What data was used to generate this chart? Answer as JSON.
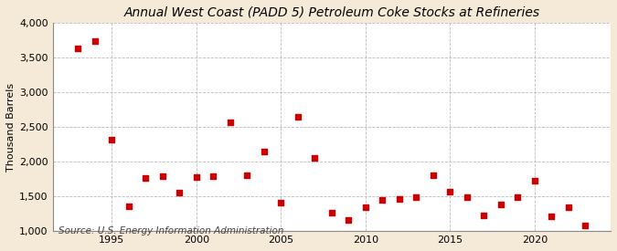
{
  "title": "Annual West Coast (PADD 5) Petroleum Coke Stocks at Refineries",
  "ylabel": "Thousand Barrels",
  "source": "Source: U.S. Energy Information Administration",
  "figure_bg_color": "#f5ead8",
  "plot_bg_color": "#ffffff",
  "marker_color": "#cc0000",
  "marker": "s",
  "marker_size": 16,
  "ylim": [
    1000,
    4000
  ],
  "yticks": [
    1000,
    1500,
    2000,
    2500,
    3000,
    3500,
    4000
  ],
  "years": [
    1993,
    1994,
    1995,
    1996,
    1997,
    1998,
    1999,
    2000,
    2001,
    2002,
    2003,
    2004,
    2005,
    2006,
    2007,
    2008,
    2009,
    2010,
    2011,
    2012,
    2013,
    2014,
    2015,
    2016,
    2017,
    2018,
    2019,
    2020,
    2021,
    2022,
    2023
  ],
  "values": [
    3630,
    3730,
    2320,
    1360,
    1760,
    1790,
    1560,
    1780,
    1790,
    2560,
    1810,
    2150,
    1410,
    2650,
    2060,
    1270,
    1160,
    1350,
    1450,
    1460,
    1490,
    1810,
    1570,
    1490,
    1220,
    1380,
    1490,
    1720,
    1210,
    1350,
    1080
  ],
  "xticks": [
    1995,
    2000,
    2005,
    2010,
    2015,
    2020
  ],
  "xlim": [
    1991.5,
    2024.5
  ],
  "grid_color": "#bbbbbb",
  "title_fontsize": 10,
  "label_fontsize": 8,
  "tick_fontsize": 8,
  "source_fontsize": 7.5
}
